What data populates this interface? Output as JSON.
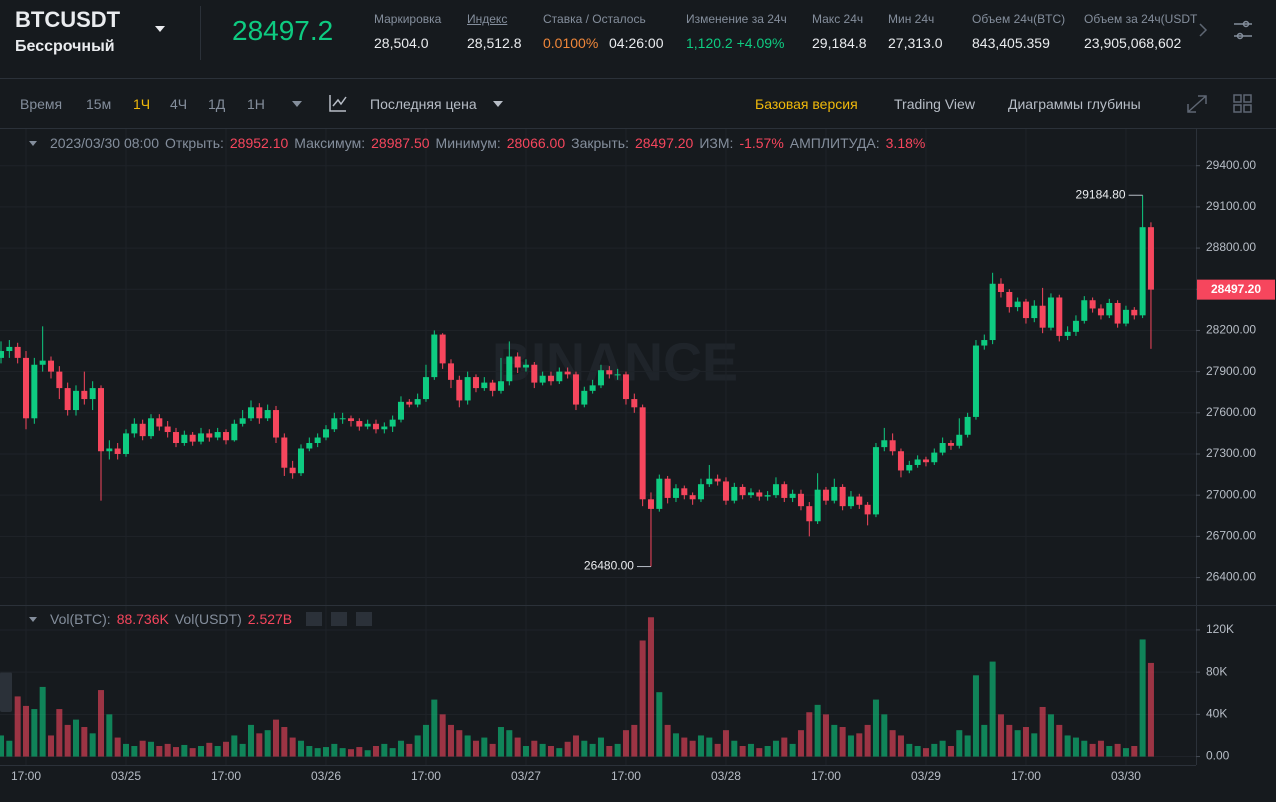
{
  "header": {
    "symbol": "BTCUSDT",
    "contract": "Бессрочный",
    "price": "28497.2",
    "stats": [
      {
        "label": "Маркировка",
        "values": [
          "28,504.0"
        ]
      },
      {
        "label": "Индекс",
        "values": [
          "28,512.8"
        ]
      },
      {
        "label": "Ставка / Осталось",
        "values": [
          "0.0100%",
          "04:26:00"
        ]
      },
      {
        "label": "Изменение за 24ч",
        "values": [
          "1,120.2 +4.09%"
        ]
      },
      {
        "label": "Макс 24ч",
        "values": [
          "29,184.8"
        ]
      },
      {
        "label": "Мин 24ч",
        "values": [
          "27,313.0"
        ]
      },
      {
        "label": "Объем 24ч(BTC)",
        "values": [
          "843,405.359"
        ]
      },
      {
        "label": "Объем за 24ч(USDT",
        "values": [
          "23,905,068,602"
        ]
      }
    ]
  },
  "toolbar": {
    "intervals": [
      "Время",
      "15м",
      "1Ч",
      "4Ч",
      "1Д",
      "1Н"
    ],
    "price_type": "Последняя цена",
    "views": [
      "Базовая версия",
      "Trading View",
      "Диаграммы глубины"
    ]
  },
  "legend": {
    "date": "2023/03/30 08:00",
    "items": [
      {
        "label": "Открыть:",
        "value": "28952.10"
      },
      {
        "label": "Максимум:",
        "value": "28987.50"
      },
      {
        "label": "Минимум:",
        "value": "28066.00"
      },
      {
        "label": "Закрыть:",
        "value": "28497.20"
      },
      {
        "label": "ИЗМ:",
        "value": "-1.57%"
      },
      {
        "label": "АМПЛИТУДА:",
        "value": "3.18%"
      }
    ]
  },
  "volume_legend": {
    "items": [
      {
        "label": "Vol(BTC):",
        "value": "88.736K"
      },
      {
        "label": "Vol(USDT)",
        "value": "2.527B"
      }
    ]
  },
  "watermark": "BINANCE",
  "chart_data": [
    {
      "type": "candlestick",
      "up_color": "#0ecb81",
      "down_color": "#f6465d",
      "grid": true,
      "ylim": [
        26200,
        29660
      ],
      "yticks": [
        {
          "value": 26400,
          "label": "26400.00"
        },
        {
          "value": 26700,
          "label": "26700.00"
        },
        {
          "value": 27000,
          "label": "27000.00"
        },
        {
          "value": 27300,
          "label": "27300.00"
        },
        {
          "value": 27600,
          "label": "27600.00"
        },
        {
          "value": 27900,
          "label": "27900.00"
        },
        {
          "value": 28200,
          "label": "28200.00"
        },
        {
          "value": 28500,
          "label": "28500.00"
        },
        {
          "value": 28800,
          "label": "28800.00"
        },
        {
          "value": 29100,
          "label": "29100.00"
        },
        {
          "value": 29400,
          "label": "29400.00"
        }
      ],
      "high_label": "29184.80",
      "low_label": "26480.00",
      "last_label": "28497.20",
      "open": [
        28000,
        28050,
        28080,
        28000,
        27560,
        27950,
        27980,
        27900,
        27780,
        27620,
        27760,
        27700,
        27780,
        27320,
        27340,
        27300,
        27450,
        27520,
        27430,
        27560,
        27500,
        27460,
        27380,
        27440,
        27390,
        27450,
        27420,
        27460,
        27400,
        27520,
        27560,
        27640,
        27560,
        27620,
        27420,
        27200,
        27160,
        27340,
        27380,
        27420,
        27480,
        27560,
        27560,
        27540,
        27500,
        27520,
        27480,
        27500,
        27550,
        27680,
        27660,
        27700,
        27860,
        28170,
        27960,
        27840,
        27690,
        27860,
        27780,
        27820,
        27760,
        27830,
        28010,
        27930,
        27950,
        27820,
        27870,
        27830,
        27900,
        27880,
        27660,
        27760,
        27800,
        27910,
        27880,
        27880,
        27700,
        27640,
        26970,
        26900,
        27120,
        26980,
        27050,
        27000,
        26970,
        27080,
        27120,
        27100,
        26960,
        27060,
        27000,
        27020,
        26990,
        27000,
        27080,
        26980,
        27010,
        26920,
        26810,
        27040,
        26960,
        27060,
        26920,
        26990,
        26930,
        26860,
        27350,
        27400,
        27320,
        27180,
        27220,
        27260,
        27240,
        27310,
        27380,
        27360,
        27440,
        27570,
        28090,
        28130,
        28540,
        28480,
        28370,
        28410,
        28290,
        28380,
        28220,
        28440,
        28160,
        28190,
        28270,
        28420,
        28360,
        28310,
        28400,
        28250,
        28350,
        28310,
        28952.1
      ],
      "high": [
        28120,
        28130,
        28110,
        28050,
        28000,
        28230,
        28010,
        27940,
        27820,
        27800,
        27900,
        27830,
        27800,
        27400,
        27380,
        27480,
        27560,
        27550,
        27590,
        27590,
        27540,
        27490,
        27470,
        27460,
        27490,
        27480,
        27490,
        27480,
        27550,
        27620,
        27690,
        27670,
        27660,
        27650,
        27450,
        27250,
        27370,
        27420,
        27450,
        27510,
        27600,
        27600,
        27580,
        27560,
        27550,
        27550,
        27530,
        27580,
        27720,
        27700,
        27740,
        27950,
        28200,
        28180,
        27990,
        27870,
        27900,
        27880,
        27860,
        27840,
        28000,
        28120,
        28040,
        27990,
        27970,
        27900,
        27900,
        27930,
        27930,
        27900,
        27790,
        27840,
        27950,
        27940,
        27920,
        27900,
        27740,
        27660,
        27020,
        27150,
        27140,
        27080,
        27070,
        27020,
        27120,
        27220,
        27150,
        27130,
        27090,
        27080,
        27050,
        27040,
        27030,
        27130,
        27100,
        27040,
        27040,
        26950,
        27160,
        27060,
        27120,
        27080,
        27030,
        27010,
        26950,
        27380,
        27490,
        27450,
        27340,
        27250,
        27290,
        27280,
        27340,
        27420,
        27400,
        27560,
        27600,
        28130,
        28170,
        28620,
        28580,
        28500,
        28440,
        28430,
        28420,
        28510,
        28470,
        28460,
        28230,
        28310,
        28450,
        28440,
        28390,
        28430,
        28420,
        28380,
        28370,
        29184.8,
        28987.5
      ],
      "low": [
        27960,
        28000,
        27960,
        27480,
        27520,
        27900,
        27850,
        27700,
        27580,
        27580,
        27660,
        27620,
        26960,
        27260,
        27260,
        27280,
        27420,
        27400,
        27410,
        27470,
        27420,
        27350,
        27360,
        27360,
        27370,
        27390,
        27400,
        27370,
        27390,
        27500,
        27540,
        27520,
        27540,
        27380,
        27140,
        27120,
        27140,
        27320,
        27350,
        27400,
        27460,
        27520,
        27500,
        27470,
        27480,
        27450,
        27450,
        27460,
        27530,
        27640,
        27640,
        27680,
        27840,
        27920,
        27780,
        27640,
        27660,
        27750,
        27760,
        27720,
        27740,
        27800,
        27890,
        27900,
        27780,
        27800,
        27800,
        27810,
        27850,
        27620,
        27640,
        27740,
        27780,
        27850,
        27840,
        27660,
        27600,
        26920,
        26480,
        26880,
        26940,
        26950,
        26970,
        26930,
        26950,
        27060,
        27070,
        26930,
        26940,
        26970,
        26980,
        26960,
        26960,
        26980,
        26950,
        26950,
        26890,
        26700,
        26790,
        26930,
        26940,
        26890,
        26900,
        26900,
        26780,
        26840,
        27320,
        27290,
        27130,
        27160,
        27200,
        27210,
        27220,
        27290,
        27330,
        27340,
        27420,
        27550,
        28060,
        28100,
        28440,
        28330,
        28340,
        28250,
        28260,
        28180,
        28200,
        28120,
        28130,
        28160,
        28250,
        28330,
        28280,
        28290,
        28220,
        28230,
        28280,
        28290,
        28066
      ],
      "close": [
        28050,
        28080,
        28000,
        27560,
        27950,
        27980,
        27900,
        27780,
        27620,
        27760,
        27700,
        27780,
        27320,
        27340,
        27300,
        27450,
        27520,
        27430,
        27560,
        27500,
        27460,
        27380,
        27440,
        27390,
        27450,
        27420,
        27460,
        27400,
        27520,
        27560,
        27640,
        27560,
        27620,
        27420,
        27200,
        27160,
        27340,
        27380,
        27420,
        27480,
        27560,
        27560,
        27540,
        27500,
        27520,
        27480,
        27500,
        27550,
        27680,
        27660,
        27700,
        27860,
        28170,
        27960,
        27840,
        27690,
        27860,
        27780,
        27820,
        27760,
        27830,
        28010,
        27930,
        27950,
        27820,
        27870,
        27830,
        27900,
        27880,
        27660,
        27760,
        27800,
        27910,
        27880,
        27880,
        27700,
        27640,
        26970,
        26900,
        27120,
        26980,
        27050,
        27000,
        26970,
        27080,
        27120,
        27100,
        26960,
        27060,
        27000,
        27020,
        26990,
        27000,
        27080,
        26980,
        27010,
        26920,
        26810,
        27040,
        26960,
        27060,
        26920,
        26990,
        26930,
        26860,
        27350,
        27400,
        27320,
        27180,
        27220,
        27260,
        27240,
        27310,
        27380,
        27360,
        27440,
        27570,
        28090,
        28130,
        28540,
        28480,
        28370,
        28410,
        28290,
        28380,
        28220,
        28440,
        28160,
        28190,
        28270,
        28420,
        28360,
        28310,
        28400,
        28250,
        28350,
        28310,
        28952.1,
        28497.2
      ]
    },
    {
      "type": "bar",
      "up_color": "#0ecb81",
      "down_color": "#f6465d",
      "opacity": 0.6,
      "grid": true,
      "ylim": [
        -8000,
        137000
      ],
      "yticks": [
        {
          "value": 0,
          "label": "0.00"
        },
        {
          "value": 40000,
          "label": "40K"
        },
        {
          "value": 80000,
          "label": "80K"
        },
        {
          "value": 120000,
          "label": "120K"
        }
      ],
      "categories": [
        null,
        null,
        null,
        "17:00",
        null,
        null,
        null,
        null,
        null,
        null,
        null,
        null,
        null,
        null,
        null,
        "03/25",
        null,
        null,
        null,
        null,
        null,
        null,
        null,
        null,
        null,
        null,
        null,
        "17:00",
        null,
        null,
        null,
        null,
        null,
        null,
        null,
        null,
        null,
        null,
        null,
        "03/26",
        null,
        null,
        null,
        null,
        null,
        null,
        null,
        null,
        null,
        null,
        null,
        "17:00",
        null,
        null,
        null,
        null,
        null,
        null,
        null,
        null,
        null,
        null,
        null,
        "03/27",
        null,
        null,
        null,
        null,
        null,
        null,
        null,
        null,
        null,
        null,
        null,
        "17:00",
        null,
        null,
        null,
        null,
        null,
        null,
        null,
        null,
        null,
        null,
        null,
        "03/28",
        null,
        null,
        null,
        null,
        null,
        null,
        null,
        null,
        null,
        null,
        null,
        "17:00",
        null,
        null,
        null,
        null,
        null,
        null,
        null,
        null,
        null,
        null,
        null,
        "03/29",
        null,
        null,
        null,
        null,
        null,
        null,
        null,
        null,
        null,
        null,
        null,
        "17:00",
        null,
        null,
        null,
        null,
        null,
        null,
        null,
        null,
        null,
        null,
        null,
        "03/30",
        null,
        null,
        null
      ],
      "values": [
        20000,
        15000,
        57000,
        48000,
        45000,
        66000,
        20000,
        45000,
        30000,
        35000,
        28000,
        22000,
        63000,
        40000,
        18000,
        12000,
        10000,
        15000,
        14000,
        10000,
        12000,
        9000,
        11000,
        8000,
        10000,
        13000,
        10000,
        14000,
        20000,
        12000,
        30000,
        22000,
        25000,
        35000,
        28000,
        18000,
        15000,
        10000,
        8000,
        9000,
        12000,
        8000,
        7000,
        9000,
        6000,
        10000,
        12000,
        8000,
        15000,
        12000,
        20000,
        30000,
        54000,
        40000,
        30000,
        25000,
        20000,
        15000,
        18000,
        12000,
        28000,
        25000,
        18000,
        10000,
        15000,
        12000,
        10000,
        8000,
        14000,
        20000,
        15000,
        12000,
        18000,
        10000,
        12000,
        25000,
        30000,
        110000,
        132000,
        61000,
        30000,
        22000,
        18000,
        15000,
        20000,
        18000,
        12000,
        25000,
        15000,
        10000,
        12000,
        8000,
        10000,
        15000,
        18000,
        12000,
        25000,
        42000,
        49000,
        40000,
        30000,
        28000,
        20000,
        22000,
        30000,
        54000,
        40000,
        25000,
        20000,
        12000,
        10000,
        8000,
        12000,
        15000,
        10000,
        25000,
        20000,
        77000,
        30000,
        90000,
        40000,
        30000,
        25000,
        28000,
        22000,
        47000,
        40000,
        30000,
        20000,
        18000,
        15000,
        12000,
        15000,
        10000,
        12000,
        8000,
        10000,
        111000,
        88736
      ]
    }
  ]
}
